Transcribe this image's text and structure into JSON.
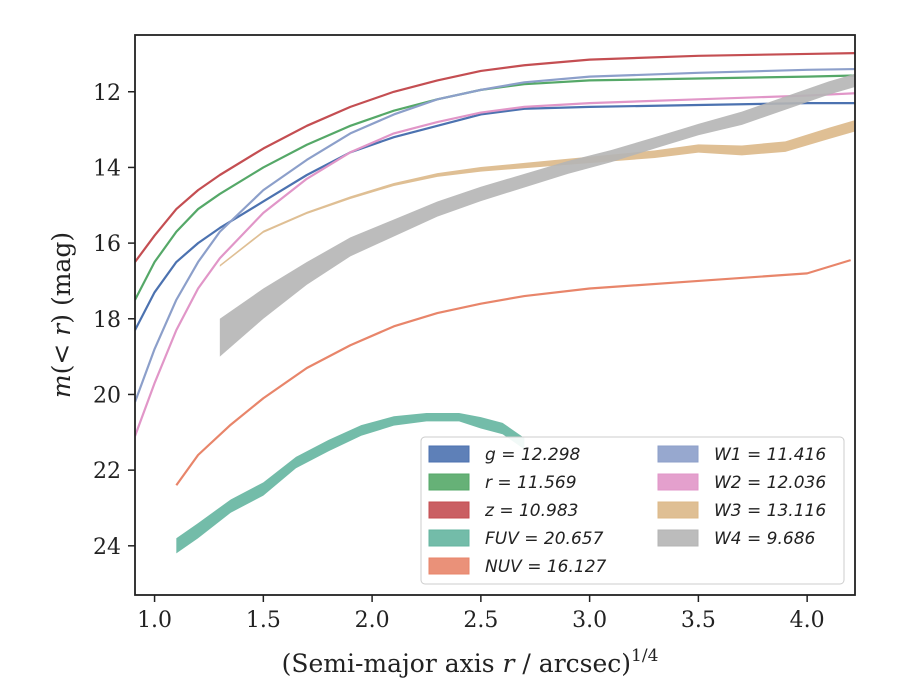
{
  "chart_data": {
    "type": "line",
    "xlabel": "(Semi-major axis r / arcsec)^1/4",
    "ylabel": "m(< r) (mag)",
    "xlim": [
      0.91,
      4.22
    ],
    "ylim": [
      25.3,
      10.5
    ],
    "y_inverted": true,
    "x_ticks": [
      1.0,
      1.5,
      2.0,
      2.5,
      3.0,
      3.5,
      4.0
    ],
    "x_tick_labels": [
      "1.0",
      "1.5",
      "2.0",
      "2.5",
      "3.0",
      "3.5",
      "4.0"
    ],
    "y_ticks": [
      12,
      14,
      16,
      18,
      20,
      22,
      24
    ],
    "y_tick_labels": [
      "12",
      "14",
      "16",
      "18",
      "20",
      "22",
      "24"
    ],
    "grid": false,
    "legend_position": "lower-right",
    "legend_columns": 2,
    "series": [
      {
        "name": "g = 12.298",
        "color": "#4c72b0",
        "style": "thin",
        "x": [
          0.91,
          1.0,
          1.1,
          1.2,
          1.3,
          1.5,
          1.7,
          1.9,
          2.1,
          2.3,
          2.5,
          2.7,
          3.0,
          3.5,
          4.0,
          4.22
        ],
        "y": [
          18.3,
          17.3,
          16.5,
          16.0,
          15.6,
          14.9,
          14.2,
          13.6,
          13.2,
          12.9,
          12.6,
          12.45,
          12.4,
          12.35,
          12.3,
          12.3
        ]
      },
      {
        "name": "r = 11.569",
        "color": "#55a868",
        "style": "thin",
        "x": [
          0.91,
          1.0,
          1.1,
          1.2,
          1.3,
          1.5,
          1.7,
          1.9,
          2.1,
          2.3,
          2.5,
          2.7,
          3.0,
          3.5,
          4.0,
          4.22
        ],
        "y": [
          17.5,
          16.5,
          15.7,
          15.1,
          14.7,
          14.0,
          13.4,
          12.9,
          12.5,
          12.2,
          11.95,
          11.8,
          11.7,
          11.65,
          11.6,
          11.57
        ]
      },
      {
        "name": "z = 10.983",
        "color": "#c44e52",
        "style": "thin",
        "x": [
          0.91,
          1.0,
          1.1,
          1.2,
          1.3,
          1.5,
          1.7,
          1.9,
          2.1,
          2.3,
          2.5,
          2.7,
          3.0,
          3.5,
          4.0,
          4.22
        ],
        "y": [
          16.5,
          15.8,
          15.1,
          14.6,
          14.2,
          13.5,
          12.9,
          12.4,
          12.0,
          11.7,
          11.45,
          11.3,
          11.15,
          11.05,
          11.0,
          10.98
        ]
      },
      {
        "name": "FUV = 20.657",
        "color": "#64b5a0",
        "style": "band",
        "x": [
          1.1,
          1.2,
          1.35,
          1.5,
          1.65,
          1.8,
          1.95,
          2.1,
          2.25,
          2.4,
          2.5,
          2.6,
          2.7
        ],
        "y": [
          24.0,
          23.6,
          22.95,
          22.5,
          21.8,
          21.35,
          20.95,
          20.7,
          20.6,
          20.6,
          20.75,
          20.9,
          21.3
        ],
        "width": [
          0.4,
          0.4,
          0.35,
          0.35,
          0.3,
          0.3,
          0.28,
          0.25,
          0.22,
          0.22,
          0.3,
          0.3,
          0.3
        ]
      },
      {
        "name": "NUV = 16.127",
        "color": "#e8856a",
        "style": "thin",
        "x": [
          1.1,
          1.2,
          1.35,
          1.5,
          1.7,
          1.9,
          2.1,
          2.3,
          2.5,
          2.7,
          3.0,
          3.5,
          4.0,
          4.2
        ],
        "y": [
          22.4,
          21.6,
          20.8,
          20.1,
          19.3,
          18.7,
          18.2,
          17.85,
          17.6,
          17.4,
          17.2,
          17.0,
          16.8,
          16.45
        ]
      },
      {
        "name": "W1 = 11.416",
        "color": "#8c9fca",
        "style": "thin",
        "x": [
          0.91,
          1.0,
          1.1,
          1.2,
          1.3,
          1.5,
          1.7,
          1.9,
          2.1,
          2.3,
          2.5,
          2.7,
          3.0,
          3.5,
          4.0,
          4.22
        ],
        "y": [
          20.2,
          18.8,
          17.5,
          16.5,
          15.7,
          14.6,
          13.8,
          13.1,
          12.6,
          12.2,
          11.95,
          11.75,
          11.6,
          11.5,
          11.42,
          11.4
        ]
      },
      {
        "name": "W2 = 12.036",
        "color": "#e196c8",
        "style": "thin",
        "x": [
          0.91,
          1.0,
          1.1,
          1.2,
          1.3,
          1.5,
          1.7,
          1.9,
          2.1,
          2.3,
          2.5,
          2.7,
          3.0,
          3.5,
          4.0,
          4.22
        ],
        "y": [
          21.1,
          19.7,
          18.3,
          17.2,
          16.4,
          15.2,
          14.3,
          13.6,
          13.1,
          12.8,
          12.55,
          12.4,
          12.3,
          12.2,
          12.1,
          12.04
        ]
      },
      {
        "name": "W3 = 13.116",
        "color": "#dcb888",
        "style": "band",
        "x": [
          1.3,
          1.5,
          1.7,
          1.9,
          2.1,
          2.3,
          2.5,
          2.7,
          2.9,
          3.1,
          3.3,
          3.5,
          3.7,
          3.9,
          4.1,
          4.22
        ],
        "y": [
          16.6,
          15.7,
          15.2,
          14.8,
          14.45,
          14.2,
          14.05,
          13.95,
          13.85,
          13.75,
          13.65,
          13.5,
          13.55,
          13.45,
          13.1,
          12.9
        ],
        "width": [
          0.05,
          0.06,
          0.06,
          0.07,
          0.08,
          0.1,
          0.12,
          0.14,
          0.16,
          0.18,
          0.2,
          0.22,
          0.26,
          0.28,
          0.3,
          0.3
        ]
      },
      {
        "name": "W4 = 9.686",
        "color": "#b5b5b5",
        "style": "band",
        "x": [
          1.3,
          1.5,
          1.7,
          1.9,
          2.1,
          2.3,
          2.5,
          2.7,
          2.9,
          3.1,
          3.3,
          3.5,
          3.7,
          3.9,
          4.1,
          4.22
        ],
        "y": [
          18.5,
          17.6,
          16.8,
          16.1,
          15.6,
          15.1,
          14.7,
          14.35,
          14.0,
          13.7,
          13.35,
          13.0,
          12.7,
          12.3,
          11.9,
          11.7
        ],
        "width": [
          1.0,
          0.8,
          0.6,
          0.5,
          0.45,
          0.4,
          0.38,
          0.36,
          0.34,
          0.32,
          0.3,
          0.3,
          0.35,
          0.35,
          0.35,
          0.35
        ]
      }
    ]
  }
}
